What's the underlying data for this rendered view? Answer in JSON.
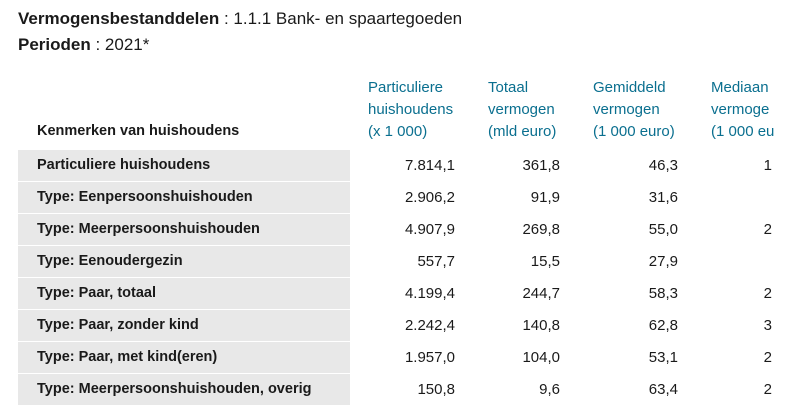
{
  "header": {
    "title_label": "Vermogensbestanddelen",
    "title_value": " : 1.1.1 Bank- en spaartegoeden",
    "period_label": "Perioden",
    "period_value": " : 2021*"
  },
  "table": {
    "row_header": "Kenmerken van huishoudens",
    "columns": [
      {
        "lines": [
          "Particuliere",
          "huishoudens",
          "(x 1 000)"
        ]
      },
      {
        "lines": [
          "Totaal",
          "vermogen",
          "(mld euro)"
        ]
      },
      {
        "lines": [
          "Gemiddeld",
          "vermogen",
          "(1 000 euro)"
        ]
      },
      {
        "lines": [
          "Mediaan",
          "vermoge",
          "(1 000 eu"
        ]
      }
    ],
    "rows": [
      [
        "Particuliere huishoudens",
        "7.814,1",
        "361,8",
        "46,3",
        "1"
      ],
      [
        "Type: Eenpersoonshuishouden",
        "2.906,2",
        "91,9",
        "31,6",
        null
      ],
      [
        "Type: Meerpersoonshuishouden",
        "4.907,9",
        "269,8",
        "55,0",
        "2"
      ],
      [
        "Type: Eenoudergezin",
        "557,7",
        "15,5",
        "27,9",
        null
      ],
      [
        "Type: Paar, totaal",
        "4.199,4",
        "244,7",
        "58,3",
        "2"
      ],
      [
        "Type: Paar, zonder kind",
        "2.242,4",
        "140,8",
        "62,8",
        "3"
      ],
      [
        "Type: Paar, met kind(eren)",
        "1.957,0",
        "104,0",
        "53,1",
        "2"
      ],
      [
        "Type: Meerpersoonshuishouden, overig",
        "150,8",
        "9,6",
        "63,4",
        "2"
      ]
    ]
  }
}
